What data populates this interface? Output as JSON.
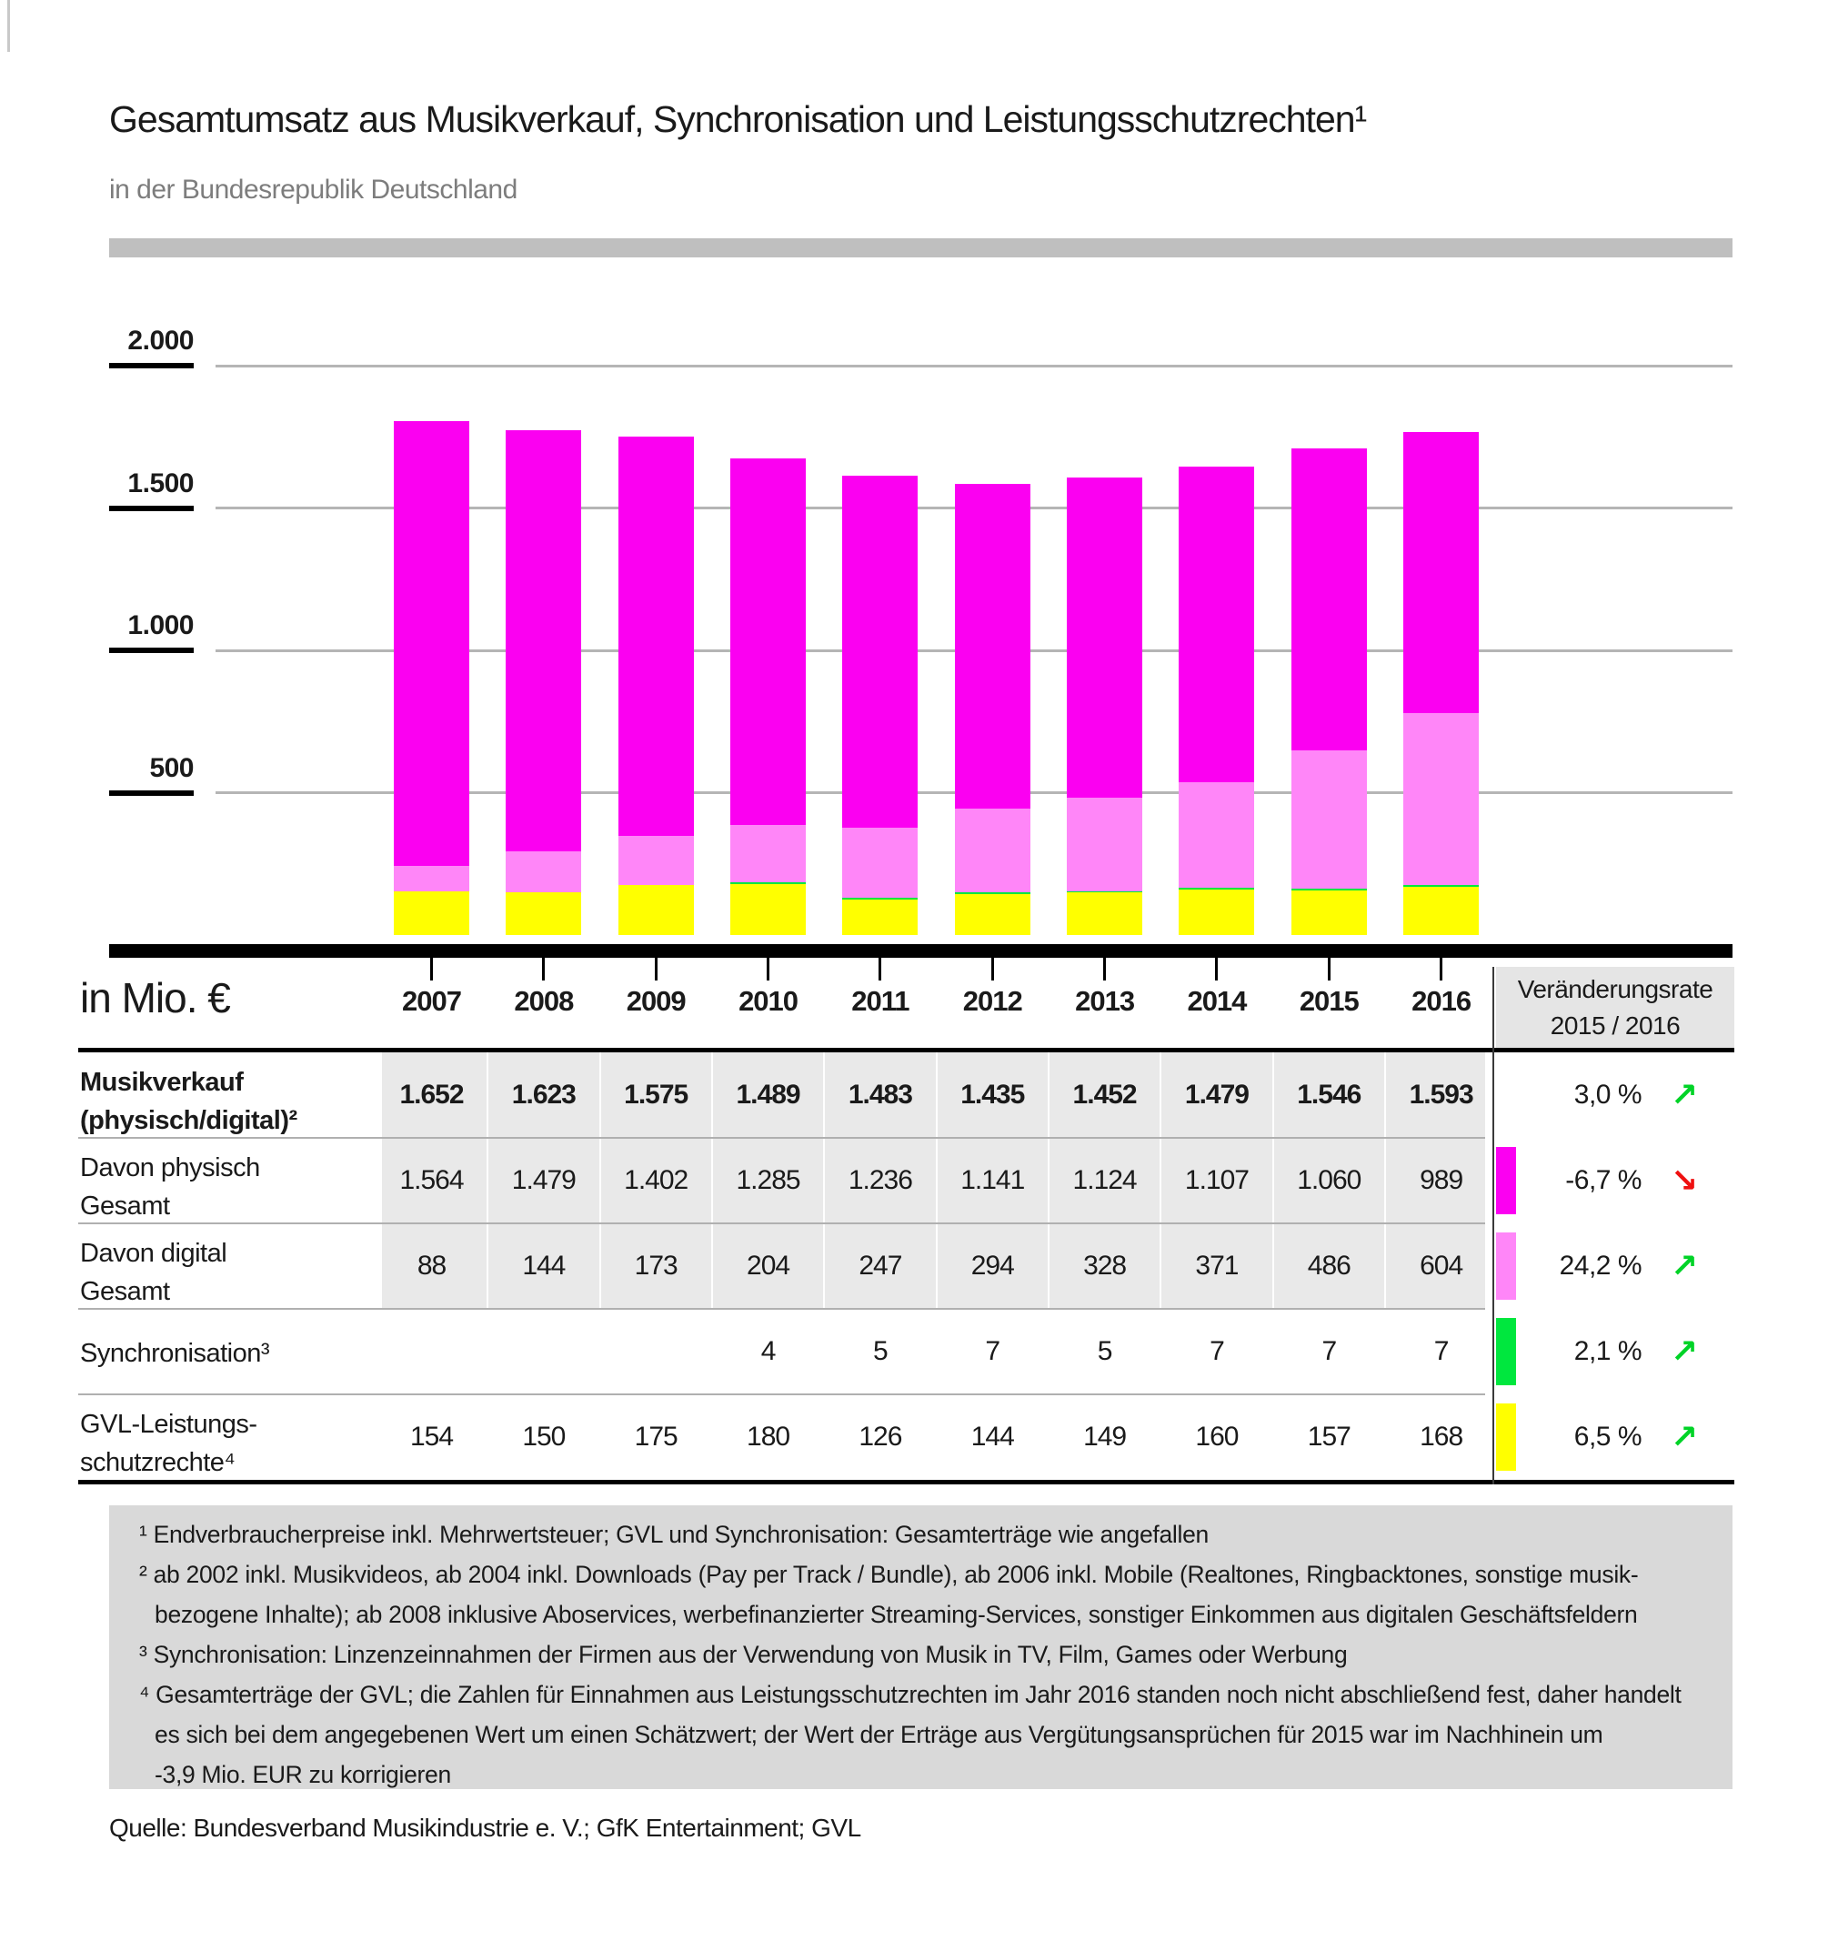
{
  "page": {
    "title": "Gesamtumsatz aus Musikverkauf, Synchronisation und Leistungsschutzrechten¹",
    "subtitle": "in der Bundesrepublik Deutschland",
    "unit_label": "in Mio. €",
    "source": "Quelle: Bundesverband Musikindustrie e. V.; GfK Entertainment; GVL"
  },
  "colors": {
    "physical": "#fb00f1",
    "digital": "#ff86f8",
    "sync": "#00e73e",
    "gvl": "#ffff00",
    "accent_magenta": "#fb00f1",
    "trend_up": "#00d327",
    "trend_down": "#ef1010",
    "grid": "#b5b5b5",
    "shaded_row": "#e9e9e9",
    "footnote_bg": "#d9d9d9"
  },
  "chart_data": {
    "type": "bar",
    "stacked": true,
    "title": "Gesamtumsatz aus Musikverkauf, Synchronisation und Leistungsschutzrechten",
    "xlabel": "",
    "ylabel": "in Mio. €",
    "ylim": [
      0,
      2000
    ],
    "grid": true,
    "legend_position": "table-chips",
    "categories": [
      "2007",
      "2008",
      "2009",
      "2010",
      "2011",
      "2012",
      "2013",
      "2014",
      "2015",
      "2016"
    ],
    "yticks": [
      {
        "label": "2.000",
        "value": 2000
      },
      {
        "label": "1.500",
        "value": 1500
      },
      {
        "label": "1.000",
        "value": 1000
      },
      {
        "label": "500",
        "value": 500
      }
    ],
    "series": [
      {
        "name": "GVL-Leistungsschutzrechte",
        "color_key": "gvl",
        "values": [
          154,
          150,
          175,
          180,
          126,
          144,
          149,
          160,
          157,
          168
        ]
      },
      {
        "name": "Synchronisation",
        "color_key": "sync",
        "values": [
          0,
          0,
          0,
          4,
          5,
          7,
          5,
          7,
          7,
          7
        ]
      },
      {
        "name": "Davon digital Gesamt",
        "color_key": "digital",
        "values": [
          88,
          144,
          173,
          204,
          247,
          294,
          328,
          371,
          486,
          604
        ]
      },
      {
        "name": "Davon physisch Gesamt",
        "color_key": "physical",
        "values": [
          1564,
          1479,
          1402,
          1285,
          1236,
          1141,
          1124,
          1107,
          1060,
          989
        ]
      }
    ]
  },
  "table": {
    "change_header_line1": "Veränderungsrate",
    "change_header_line2": "2015 / 2016",
    "rows": [
      {
        "label_lines": [
          "Musikverkauf",
          "(physisch/digital)²"
        ],
        "bold": true,
        "shaded": true,
        "chip": null,
        "values": [
          "1.652",
          "1.623",
          "1.575",
          "1.489",
          "1.483",
          "1.435",
          "1.452",
          "1.479",
          "1.546",
          "1.593"
        ],
        "change": "3,0 %",
        "trend": "up"
      },
      {
        "label_lines": [
          "Davon physisch",
          "Gesamt"
        ],
        "bold": false,
        "shaded": true,
        "chip": "physical",
        "values": [
          "1.564",
          "1.479",
          "1.402",
          "1.285",
          "1.236",
          "1.141",
          "1.124",
          "1.107",
          "1.060",
          "989"
        ],
        "change": "-6,7 %",
        "trend": "down"
      },
      {
        "label_lines": [
          "Davon digital",
          "Gesamt"
        ],
        "bold": false,
        "shaded": true,
        "chip": "digital",
        "values": [
          "88",
          "144",
          "173",
          "204",
          "247",
          "294",
          "328",
          "371",
          "486",
          "604"
        ],
        "change": "24,2 %",
        "trend": "up"
      },
      {
        "label_lines": [
          "Synchronisation³"
        ],
        "bold": false,
        "shaded": false,
        "chip": "sync",
        "values": [
          "",
          "",
          "",
          "4",
          "5",
          "7",
          "5",
          "7",
          "7",
          "7"
        ],
        "change": "2,1 %",
        "trend": "up"
      },
      {
        "label_lines": [
          "GVL-Leistungs-",
          "schutzrechte⁴"
        ],
        "bold": false,
        "shaded": false,
        "chip": "gvl",
        "values": [
          "154",
          "150",
          "175",
          "180",
          "126",
          "144",
          "149",
          "160",
          "157",
          "168"
        ],
        "change": "6,5 %",
        "trend": "up"
      }
    ]
  },
  "footnotes": [
    {
      "sup": "¹",
      "lines": [
        "Endverbraucherpreise inkl. Mehrwertsteuer; GVL und Synchronisation: Gesamterträge wie angefallen"
      ]
    },
    {
      "sup": "²",
      "lines": [
        "ab 2002 inkl. Musikvideos, ab 2004 inkl. Downloads (Pay per Track / Bundle), ab 2006 inkl. Mobile (Realtones, Ringbacktones, sonstige musik-",
        "bezogene Inhalte); ab 2008 inklusive Aboservices, werbefinanzierter Streaming-Services, sonstiger Einkommen aus digitalen Geschäftsfeldern"
      ]
    },
    {
      "sup": "³",
      "lines": [
        "Synchronisation: Linzenzeinnahmen der Firmen aus der Verwendung von Musik in TV, Film, Games oder Werbung"
      ]
    },
    {
      "sup": "⁴",
      "lines": [
        "Gesamterträge der GVL; die Zahlen für Einnahmen aus Leistungsschutzrechten im Jahr 2016 standen noch nicht abschließend fest, daher handelt",
        "es sich bei dem angegebenen Wert um einen Schätzwert; der Wert der Erträge aus Vergütungsansprüchen für 2015 war im Nachhinein um",
        "-3,9 Mio. EUR zu korrigieren"
      ]
    }
  ]
}
